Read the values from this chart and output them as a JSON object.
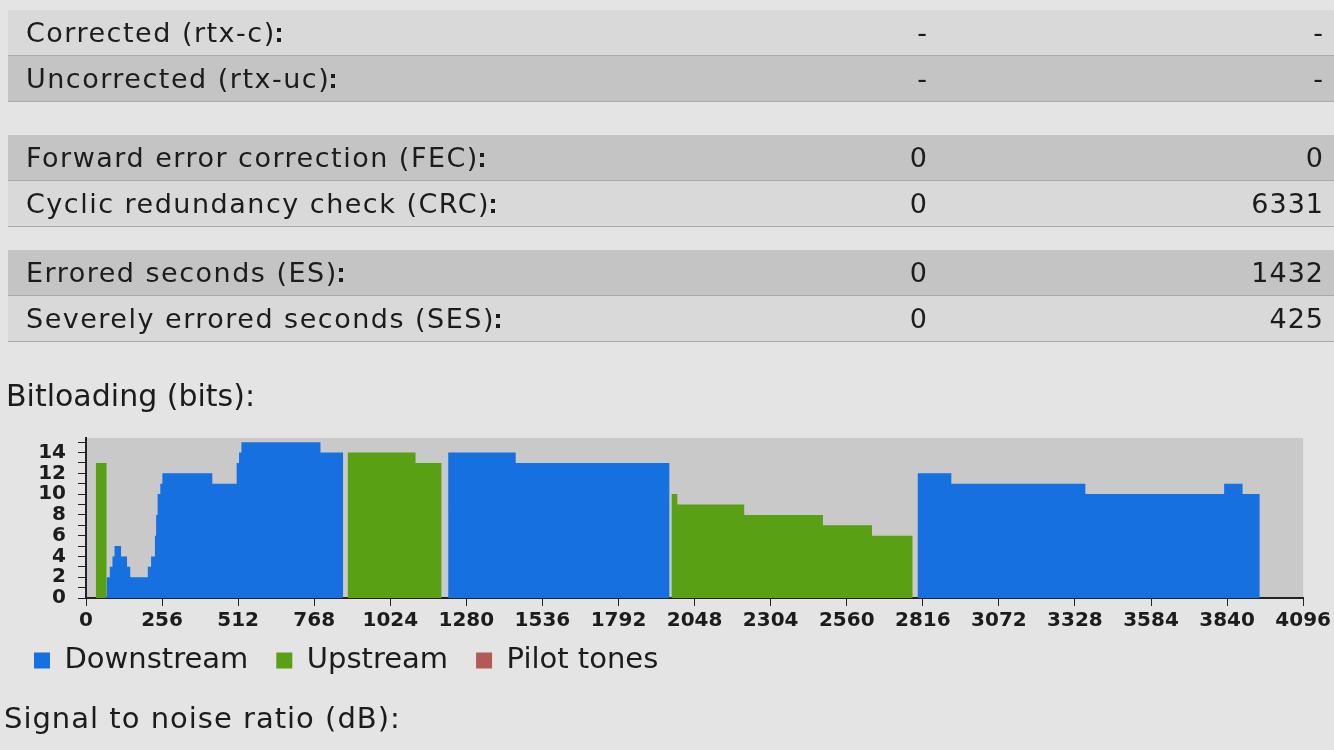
{
  "chart_data": [
    {
      "type": "other",
      "categories": [
        "Corrected (rtx-c)",
        "Uncorrected (rtx-uc)"
      ],
      "series": [
        {
          "values": [
            null,
            null
          ],
          "value_labels": [
            "-",
            "-"
          ],
          "colors": [
            "#d9d9d9",
            "#c4c4c4"
          ]
        },
        {
          "values": [
            null,
            null
          ],
          "value_labels": [
            "-",
            "-"
          ]
        }
      ]
    },
    {
      "type": "other",
      "categories": [
        "Forward error correction (FEC)",
        "Cyclic redundancy check (CRC)"
      ],
      "series": [
        {
          "values": [
            0,
            0
          ],
          "colors": [
            "#c4c4c4",
            "#d9d9d9"
          ]
        },
        {
          "values": [
            0,
            6331
          ]
        }
      ],
      "data_labels": true
    },
    {
      "type": "other",
      "categories": [
        "Errored seconds (ES)",
        "Severely errored seconds (SES)"
      ],
      "series": [
        {
          "values": [
            0,
            0
          ],
          "colors": [
            "#c4c4c4",
            "#d9d9d9"
          ]
        },
        {
          "values": [
            1432,
            425
          ]
        }
      ],
      "data_labels": true
    },
    {
      "type": "area",
      "title": "Bitloading (bits):",
      "series": [
        {
          "name": "Downstream",
          "color": "#1670e0",
          "x": [
            69,
            69,
            80,
            80,
            89,
            89,
            96,
            96,
            118,
            118,
            138,
            138,
            149,
            149,
            208,
            208,
            219,
            219,
            232,
            232,
            236,
            236,
            241,
            241,
            250,
            250,
            257,
            257,
            425,
            425,
            507,
            507,
            515,
            515,
            523,
            523,
            789,
            789,
            865,
            865,
            1219,
            1219,
            1446,
            1446,
            1963,
            1963,
            2799,
            2799,
            2912,
            2912,
            3363,
            3363,
            3830,
            3830,
            3892,
            3892,
            3950,
            3950
          ],
          "values": [
            0,
            2,
            2,
            3,
            3,
            4,
            4,
            5,
            5,
            4,
            4,
            3,
            3,
            2,
            2,
            3,
            3,
            4,
            4,
            6,
            6,
            8,
            8,
            10,
            10,
            11,
            11,
            12,
            12,
            11,
            11,
            13,
            13,
            14,
            14,
            15,
            15,
            14,
            14,
            0,
            0,
            14,
            14,
            13,
            13,
            0,
            0,
            12,
            12,
            11,
            11,
            10,
            10,
            11,
            11,
            10,
            10,
            0
          ]
        },
        {
          "name": "Upstream",
          "color": "#5aa014",
          "x": [
            33,
            33,
            69,
            69,
            881,
            881,
            1109,
            1109,
            1196,
            1196,
            1971,
            1971,
            1990,
            1990,
            2215,
            2215,
            2480,
            2480,
            2645,
            2645,
            2782,
            2782
          ],
          "values": [
            0,
            13,
            13,
            0,
            0,
            14,
            14,
            13,
            13,
            0,
            0,
            10,
            10,
            9,
            9,
            8,
            8,
            7,
            7,
            6,
            6,
            0
          ]
        },
        {
          "name": "Pilot tones",
          "color": "#b35a52"
        }
      ],
      "xlim": [
        0,
        4096
      ],
      "xticks": [
        0,
        256,
        512,
        768,
        1024,
        1280,
        1536,
        1792,
        2048,
        2304,
        2560,
        2816,
        3072,
        3328,
        3584,
        3840,
        4096
      ],
      "ylim": [
        0,
        15.4
      ],
      "yticks": [
        0,
        {
          "value": 1,
          "label": null
        },
        2,
        {
          "value": 3,
          "label": null
        },
        4,
        {
          "value": 5,
          "label": null
        },
        6,
        {
          "value": 7,
          "label": null
        },
        8,
        {
          "value": 9,
          "label": null
        },
        10,
        {
          "value": 11,
          "label": null
        },
        12,
        {
          "value": 13,
          "label": null
        },
        14,
        {
          "value": 15,
          "label": null
        }
      ],
      "legend": "bottom left"
    },
    {
      "type": "other",
      "title": "Signal to noise ratio (dB):"
    }
  ]
}
